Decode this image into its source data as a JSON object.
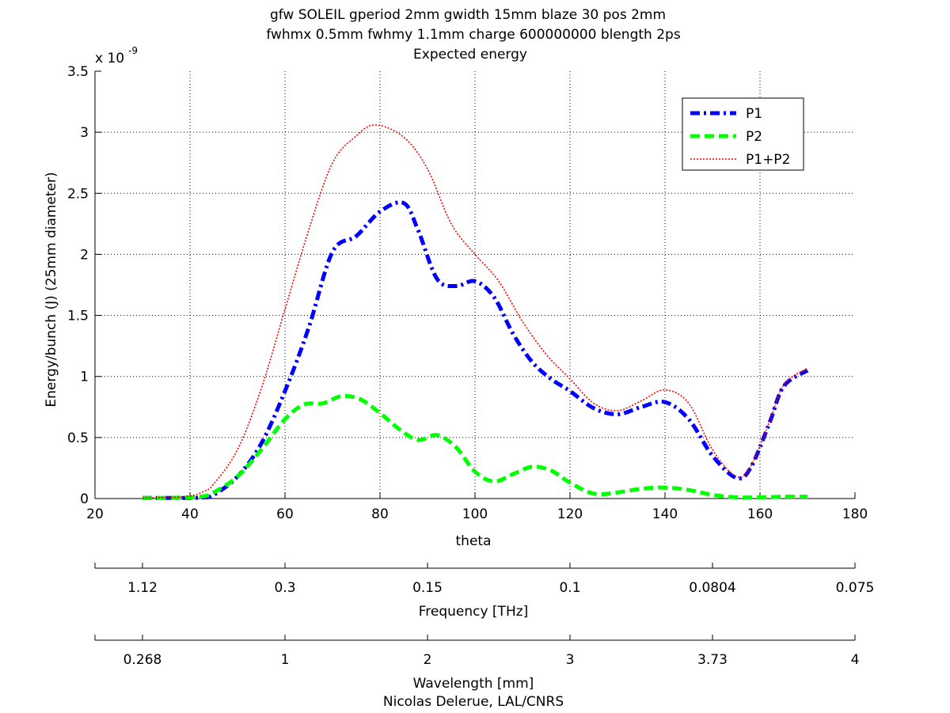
{
  "chart_data": {
    "type": "line",
    "title_lines": [
      "gfw SOLEIL gperiod 2mm gwidth 15mm blaze 30 pos 2mm",
      "fwhmx 0.5mm fwhmy 1.1mm charge 600000000 blength 2ps",
      "Expected energy"
    ],
    "xlabel": "theta",
    "ylabel": "Energy/bunch (J) (25mm diameter)",
    "y_multiplier_label": "x 10",
    "y_multiplier_exp": "-9",
    "xlim": [
      20,
      180
    ],
    "ylim": [
      0,
      3.5
    ],
    "xticks": [
      20,
      40,
      60,
      80,
      100,
      120,
      140,
      160,
      180
    ],
    "yticks": [
      0,
      0.5,
      1,
      1.5,
      2,
      2.5,
      3,
      3.5
    ],
    "grid": true,
    "legend_position": "top-right",
    "series": [
      {
        "name": "P1",
        "color": "#0000ff",
        "style": "dash-dot",
        "x": [
          30,
          35,
          40,
          43,
          45,
          50,
          55,
          60,
          65,
          70,
          75,
          80,
          85,
          88,
          92,
          96,
          100,
          104,
          108,
          112,
          116,
          120,
          125,
          130,
          135,
          140,
          145,
          150,
          155,
          158,
          162,
          165,
          170
        ],
        "y": [
          0.005,
          0.005,
          0.005,
          0.01,
          0.03,
          0.18,
          0.45,
          0.88,
          1.4,
          2.02,
          2.15,
          2.35,
          2.42,
          2.2,
          1.8,
          1.74,
          1.78,
          1.65,
          1.35,
          1.12,
          0.98,
          0.88,
          0.74,
          0.69,
          0.75,
          0.79,
          0.65,
          0.35,
          0.17,
          0.25,
          0.62,
          0.92,
          1.05
        ]
      },
      {
        "name": "P2",
        "color": "#00ff00",
        "style": "dashed",
        "x": [
          30,
          35,
          40,
          43,
          45,
          50,
          55,
          60,
          64,
          68,
          72,
          76,
          80,
          84,
          88,
          92,
          96,
          100,
          104,
          108,
          112,
          116,
          120,
          125,
          130,
          135,
          140,
          145,
          150,
          155,
          160,
          165,
          170
        ],
        "y": [
          0.005,
          0.005,
          0.01,
          0.02,
          0.05,
          0.18,
          0.4,
          0.65,
          0.77,
          0.78,
          0.84,
          0.81,
          0.7,
          0.57,
          0.48,
          0.52,
          0.42,
          0.22,
          0.14,
          0.2,
          0.26,
          0.23,
          0.13,
          0.04,
          0.05,
          0.08,
          0.09,
          0.07,
          0.03,
          0.01,
          0.01,
          0.015,
          0.015
        ]
      },
      {
        "name": "P1+P2",
        "color": "#ff0000",
        "style": "dotted",
        "x": [
          30,
          35,
          40,
          43,
          45,
          50,
          55,
          60,
          65,
          70,
          75,
          79,
          85,
          90,
          95,
          100,
          105,
          110,
          115,
          120,
          125,
          130,
          135,
          140,
          145,
          150,
          155,
          158,
          162,
          165,
          170
        ],
        "y": [
          0.005,
          0.008,
          0.02,
          0.06,
          0.12,
          0.4,
          0.9,
          1.55,
          2.2,
          2.75,
          2.97,
          3.06,
          2.96,
          2.7,
          2.25,
          2.0,
          1.78,
          1.45,
          1.18,
          0.98,
          0.78,
          0.72,
          0.8,
          0.89,
          0.78,
          0.4,
          0.18,
          0.26,
          0.63,
          0.93,
          1.07
        ]
      }
    ],
    "secondary_axes": [
      {
        "label": "Frequency [THz]",
        "tick_labels": [
          "1.12",
          "0.3",
          "0.15",
          "0.1",
          "0.0804",
          "0.075"
        ],
        "tick_theta": [
          30,
          60,
          90,
          120,
          150,
          180
        ]
      },
      {
        "label": "Wavelength [mm]",
        "tick_labels": [
          "0.268",
          "1",
          "2",
          "3",
          "3.73",
          "4"
        ],
        "tick_theta": [
          30,
          60,
          90,
          120,
          150,
          180
        ]
      }
    ],
    "footer": "Nicolas Delerue, LAL/CNRS"
  }
}
